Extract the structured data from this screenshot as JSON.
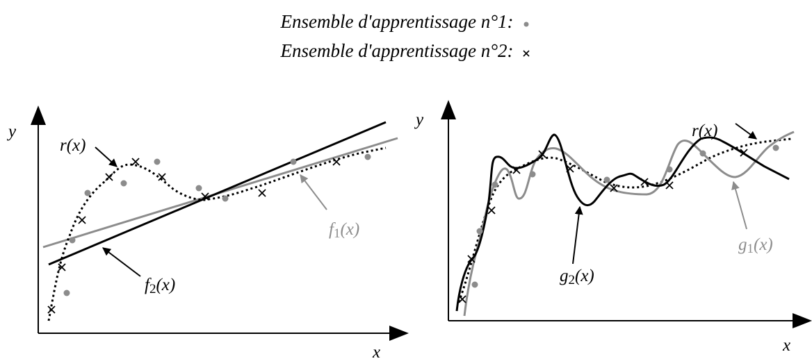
{
  "legend": {
    "set1": {
      "label": "Ensemble d'apprentissage n°1:",
      "marker": "dot",
      "color": "#8c8c8c"
    },
    "set2": {
      "label": "Ensemble d'apprentissage n°2:",
      "marker": "cross",
      "color": "#000000"
    }
  },
  "panels": [
    {
      "axes": {
        "x": "x",
        "y": "y"
      },
      "curves": [
        {
          "label": "r(x)",
          "style": "dotted",
          "color": "#000000"
        },
        {
          "label": "f1(x)",
          "style": "solid",
          "color": "#8c8c8c"
        },
        {
          "label": "f2(x)",
          "style": "solid",
          "color": "#000000"
        }
      ]
    },
    {
      "axes": {
        "x": "x",
        "y": "y"
      },
      "curves": [
        {
          "label": "r(x)",
          "style": "dotted",
          "color": "#000000"
        },
        {
          "label": "g1(x)",
          "style": "solid",
          "color": "#8c8c8c"
        },
        {
          "label": "g2(x)",
          "style": "solid",
          "color": "#000000"
        }
      ]
    }
  ]
}
